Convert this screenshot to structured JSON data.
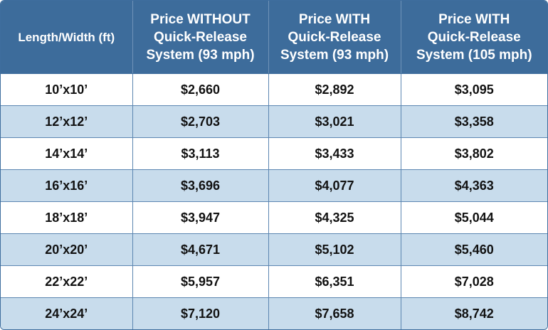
{
  "table": {
    "headers": [
      {
        "lines": [
          "Length/Width (ft)"
        ]
      },
      {
        "lines": [
          "Price WITHOUT",
          "Quick-Release",
          "System (93 mph)"
        ]
      },
      {
        "lines": [
          "Price WITH",
          "Quick-Release",
          "System (93 mph)"
        ]
      },
      {
        "lines": [
          "Price WITH",
          "Quick-Release",
          "System (105 mph)"
        ]
      }
    ],
    "rows": [
      [
        "10’x10’",
        "$2,660",
        "$2,892",
        "$3,095"
      ],
      [
        "12’x12’",
        "$2,703",
        "$3,021",
        "$3,358"
      ],
      [
        "14’x14’",
        "$3,113",
        "$3,433",
        "$3,802"
      ],
      [
        "16’x16’",
        "$3,696",
        "$4,077",
        "$4,363"
      ],
      [
        "18’x18’",
        "$3,947",
        "$4,325",
        "$5,044"
      ],
      [
        "20’x20’",
        "$4,671",
        "$5,102",
        "$5,460"
      ],
      [
        "22’x22’",
        "$5,957",
        "$6,351",
        "$7,028"
      ],
      [
        "24’x24’",
        "$7,120",
        "$7,658",
        "$8,742"
      ]
    ]
  },
  "colors": {
    "header_bg": "#3d6c9b",
    "header_text": "#ffffff",
    "row_alt_bg": "#c8dcec",
    "row_bg": "#ffffff",
    "border": "#5c86b1"
  }
}
